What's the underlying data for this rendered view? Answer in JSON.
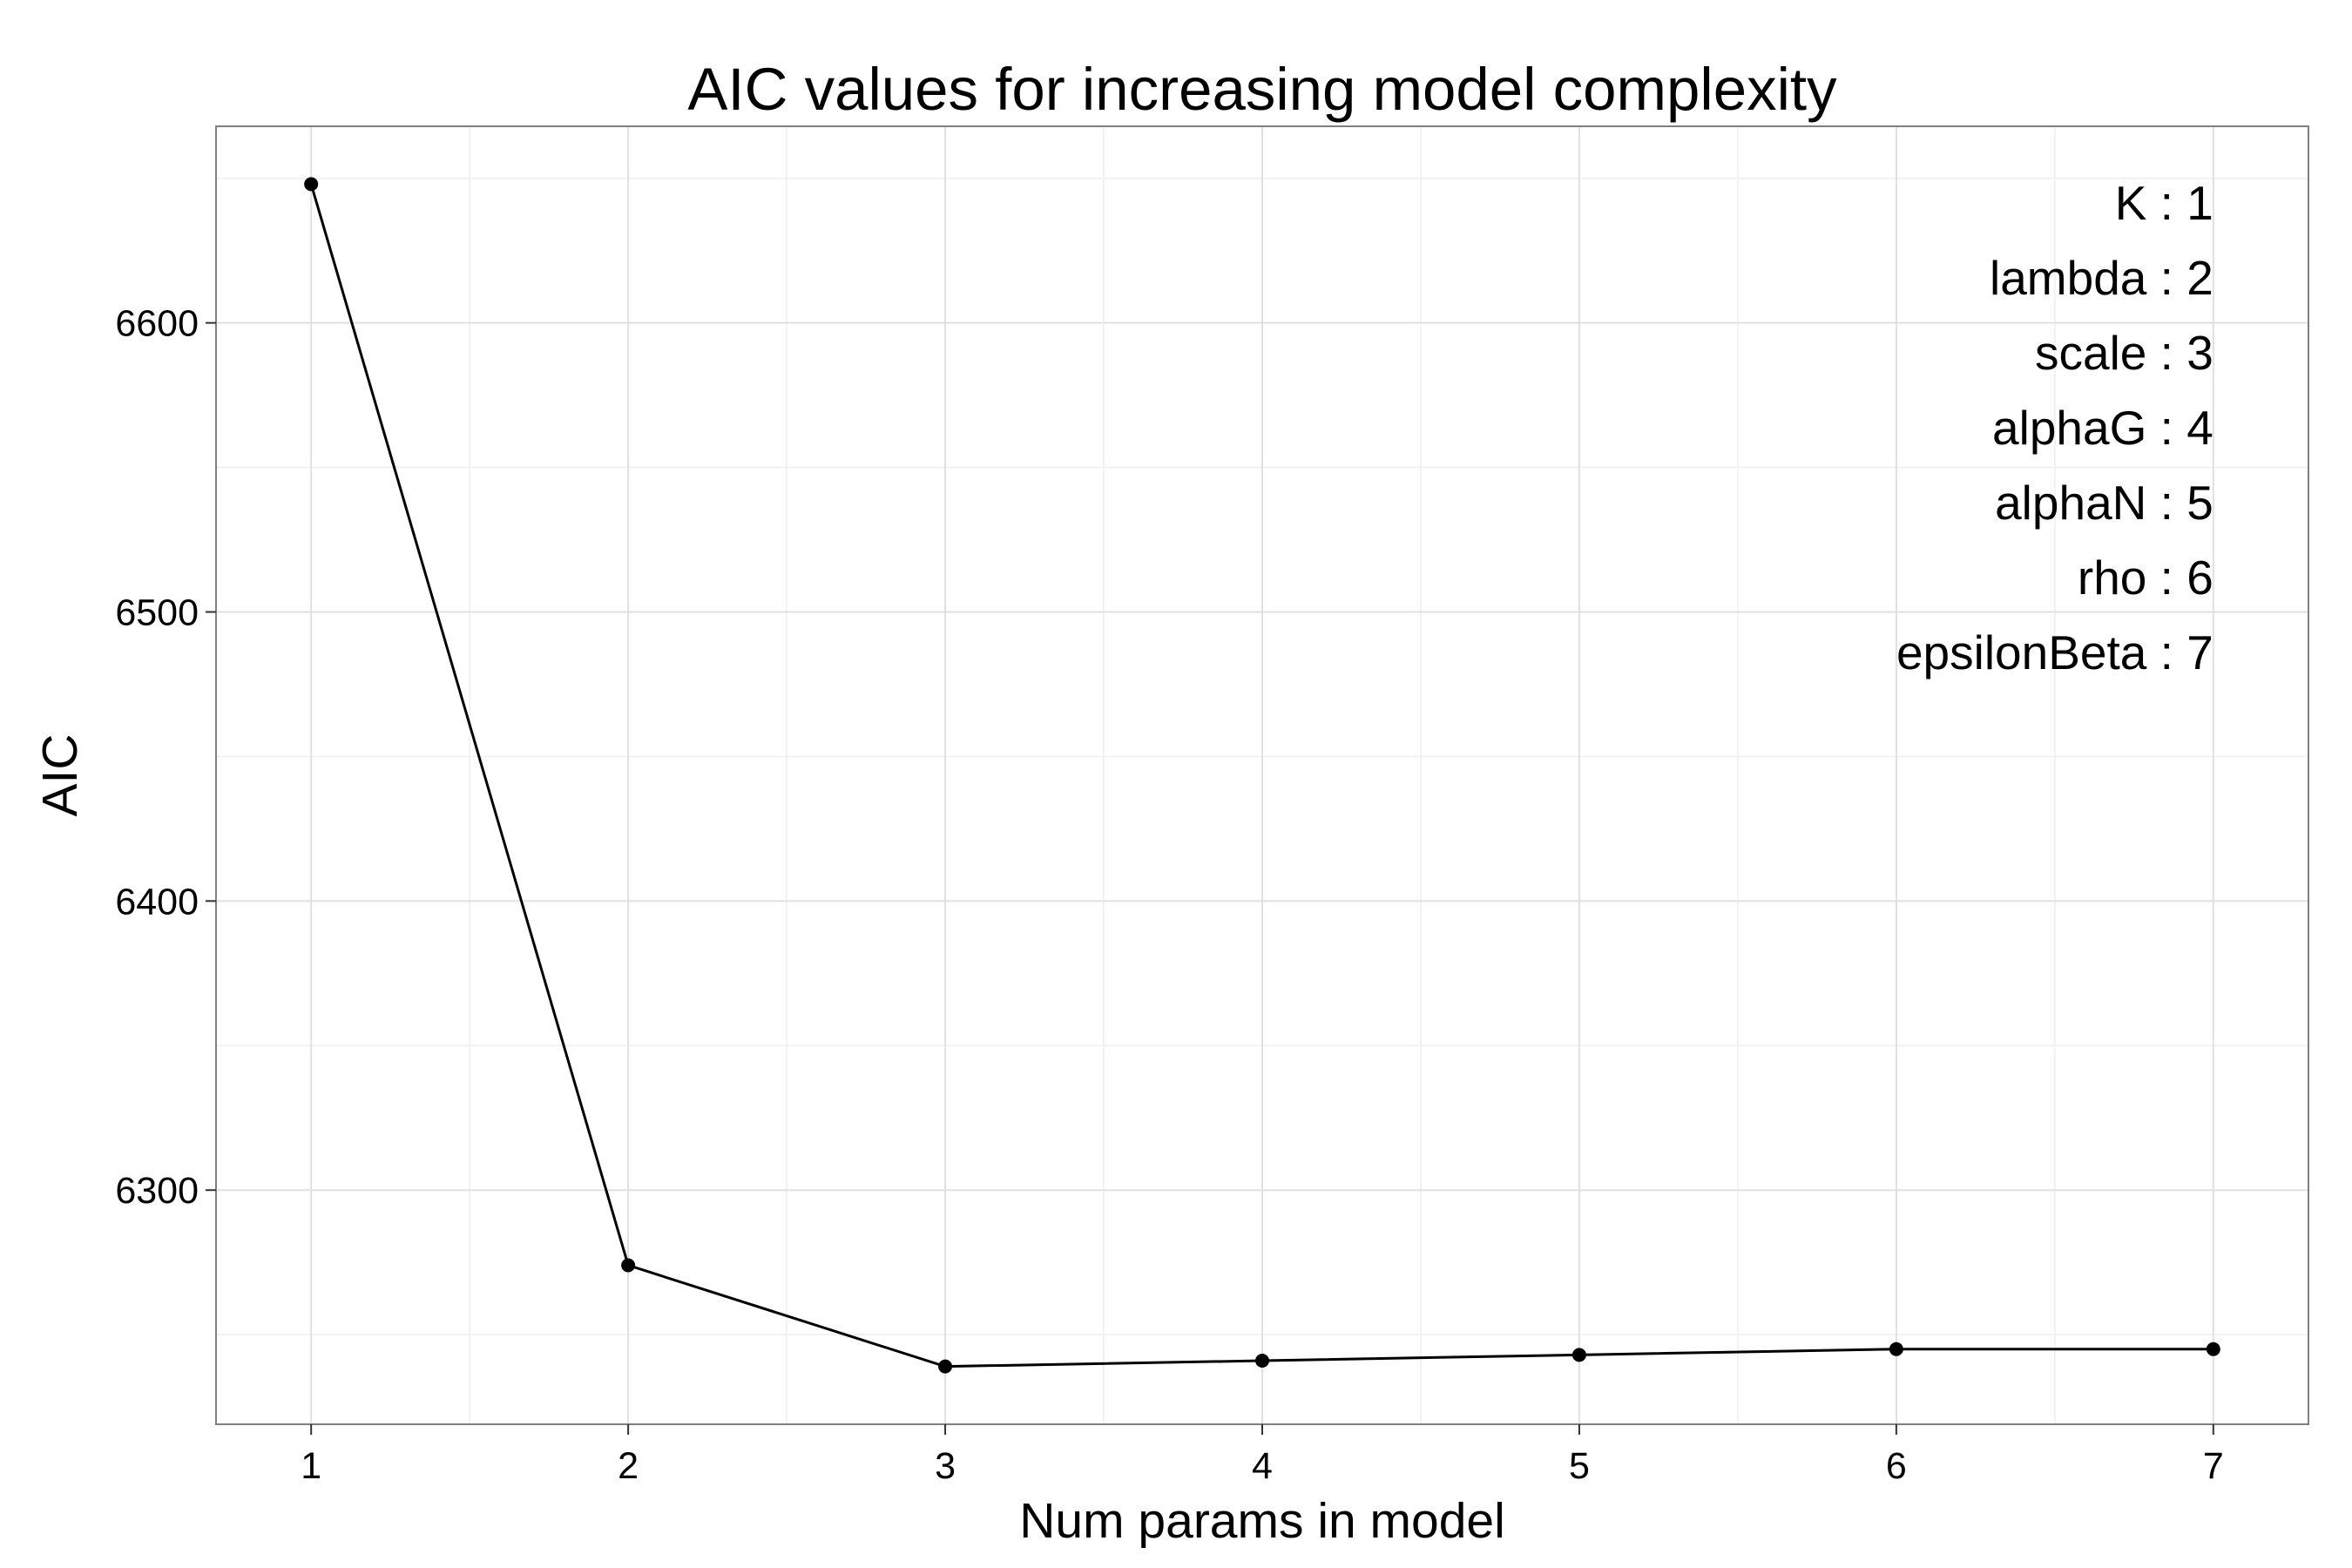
{
  "chart_data": {
    "type": "line",
    "title": "AIC values for increasing model complexity",
    "xlabel": "Num params in model",
    "ylabel": "AIC",
    "x": [
      1,
      2,
      3,
      4,
      5,
      6,
      7
    ],
    "series": [
      {
        "values": [
          6648,
          6274,
          6239,
          6241,
          6243,
          6245,
          6245
        ]
      }
    ],
    "xlim": [
      0.7,
      7.3
    ],
    "ylim": [
      6219,
      6668
    ],
    "xticks": [
      1,
      2,
      3,
      4,
      5,
      6,
      7
    ],
    "yticks": [
      6300,
      6400,
      6500,
      6600
    ],
    "x_minor_ticks": [
      1.5,
      2.5,
      3.5,
      4.5,
      5.5,
      6.5
    ],
    "y_minor_ticks": [
      6250,
      6350,
      6450,
      6550,
      6650
    ],
    "grid": true,
    "annotations": [
      "K : 1",
      "lambda : 2",
      "scale : 3",
      "alphaG : 4",
      "alphaN : 5",
      "rho : 6",
      "epsilonBeta : 7"
    ],
    "annotation_placement": "top-right",
    "colors": {
      "line": "#000000",
      "points": "#000000",
      "grid_major": "#e0e0e0",
      "grid_minor": "#f2f2f2",
      "panel_border": "#7f7f7f",
      "background": "#ffffff"
    }
  }
}
